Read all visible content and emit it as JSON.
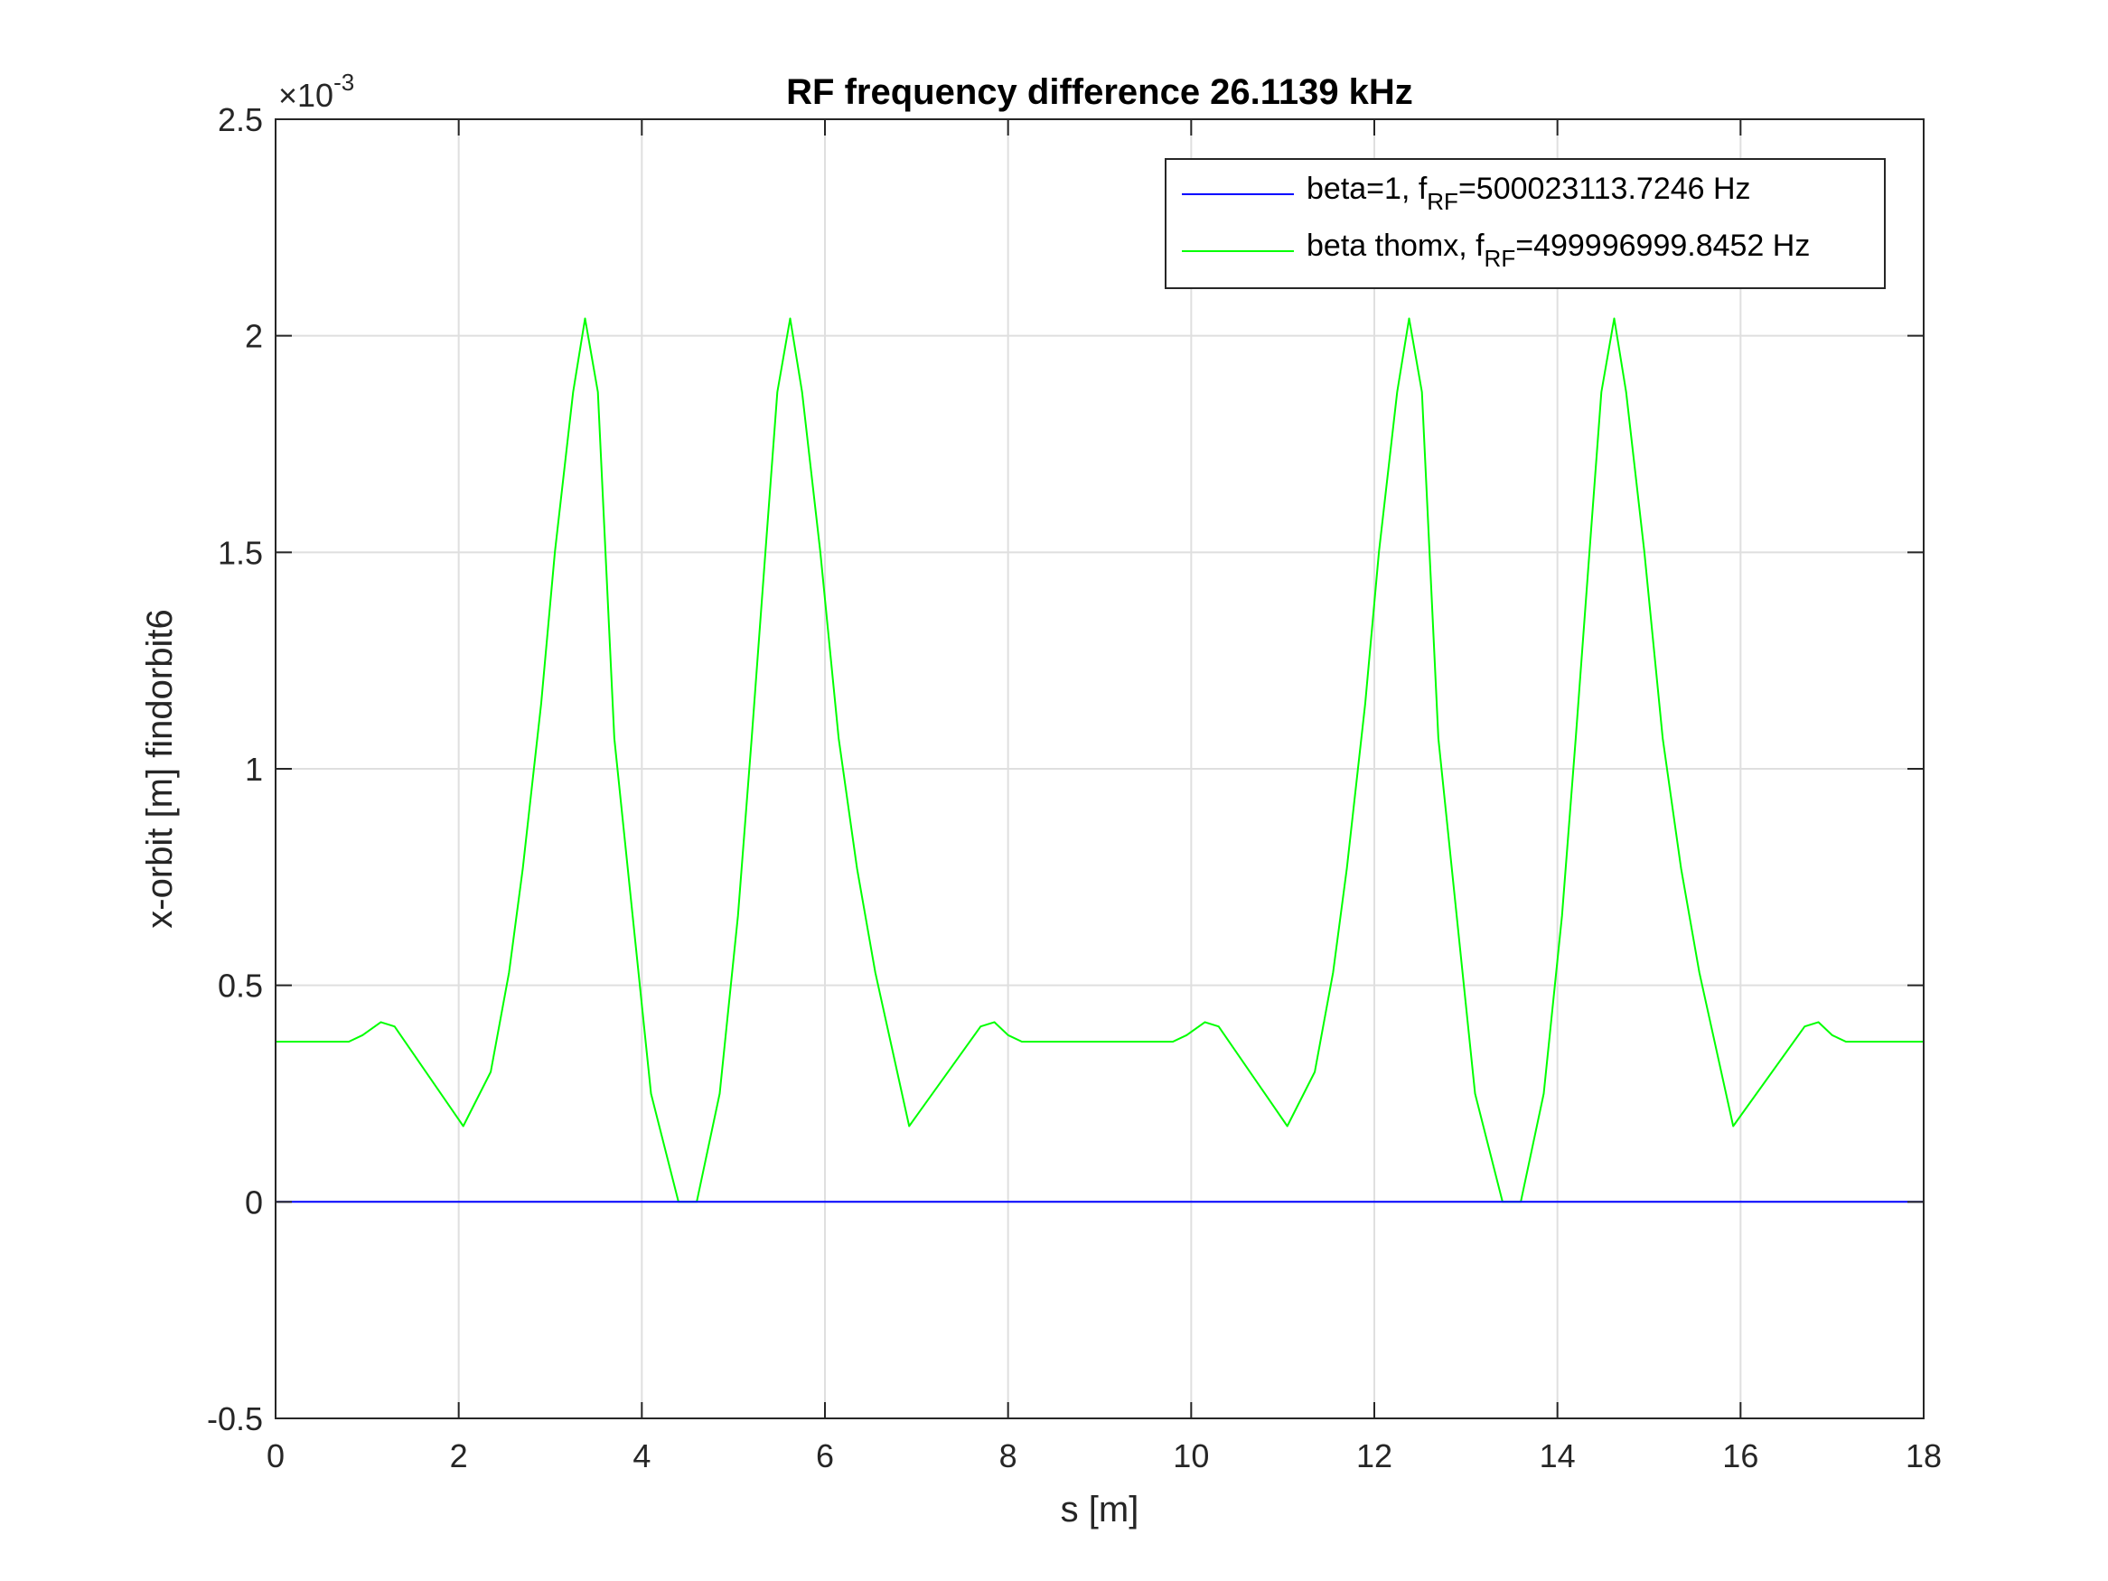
{
  "chart_data": {
    "type": "line",
    "title": "RF frequency difference 26.1139 kHz",
    "xlabel": "s [m]",
    "ylabel": "x-orbit [m] findorbit6",
    "xlim": [
      0,
      18
    ],
    "ylim": [
      -0.5,
      2.5
    ],
    "y_exponent_label": "×10",
    "y_exponent_power": "-3",
    "x_ticks": [
      0,
      2,
      4,
      6,
      8,
      10,
      12,
      14,
      16,
      18
    ],
    "x_tick_labels": [
      "0",
      "2",
      "4",
      "6",
      "8",
      "10",
      "12",
      "14",
      "16",
      "18"
    ],
    "y_ticks": [
      -0.5,
      0,
      0.5,
      1,
      1.5,
      2,
      2.5
    ],
    "y_tick_labels": [
      "-0.5",
      "0",
      "0.5",
      "1",
      "1.5",
      "2",
      "2.5"
    ],
    "grid": true,
    "legend_position": "top-right",
    "series": [
      {
        "name": "beta=1, f_RF=500023113.7246 Hz",
        "label_prefix": "beta=1, f",
        "label_sub": "RF",
        "label_suffix": "=500023113.7246 Hz",
        "color": "#0000ff",
        "x": [
          0,
          18
        ],
        "y": [
          0,
          0
        ]
      },
      {
        "name": "beta thomx, f_RF=499996999.8452 Hz",
        "label_prefix": "beta thomx, f",
        "label_sub": "RF",
        "label_suffix": "=499996999.8452 Hz",
        "color": "#00ff00",
        "x": [
          0,
          0.8,
          0.95,
          1.15,
          1.3,
          2.05,
          2.35,
          2.55,
          2.7,
          2.9,
          3.05,
          3.25,
          3.38,
          3.52,
          3.7,
          3.9,
          4.1,
          4.4,
          4.6,
          4.85,
          5.05,
          5.2,
          5.35,
          5.48,
          5.62,
          5.75,
          5.95,
          6.15,
          6.35,
          6.55,
          6.92,
          7.7,
          7.85,
          8.0,
          8.15,
          9.8,
          9.95,
          10.15,
          10.3,
          11.05,
          11.35,
          11.55,
          11.7,
          11.9,
          12.05,
          12.25,
          12.38,
          12.52,
          12.7,
          12.9,
          13.1,
          13.4,
          13.6,
          13.85,
          14.05,
          14.2,
          14.35,
          14.48,
          14.62,
          14.75,
          14.95,
          15.15,
          15.35,
          15.55,
          15.92,
          16.7,
          16.85,
          17.0,
          17.15,
          18
        ],
        "y": [
          0.37,
          0.37,
          0.385,
          0.415,
          0.405,
          0.175,
          0.3,
          0.53,
          0.77,
          1.15,
          1.5,
          1.87,
          2.04,
          1.87,
          1.07,
          0.66,
          0.25,
          0,
          0,
          0.25,
          0.66,
          1.07,
          1.5,
          1.87,
          2.04,
          1.87,
          1.5,
          1.07,
          0.77,
          0.53,
          0.175,
          0.405,
          0.415,
          0.385,
          0.37,
          0.37,
          0.385,
          0.415,
          0.405,
          0.175,
          0.3,
          0.53,
          0.77,
          1.15,
          1.5,
          1.87,
          2.04,
          1.87,
          1.07,
          0.66,
          0.25,
          0,
          0,
          0.25,
          0.66,
          1.07,
          1.5,
          1.87,
          2.04,
          1.87,
          1.5,
          1.07,
          0.77,
          0.53,
          0.175,
          0.405,
          0.415,
          0.385,
          0.37,
          0.37
        ]
      }
    ]
  }
}
